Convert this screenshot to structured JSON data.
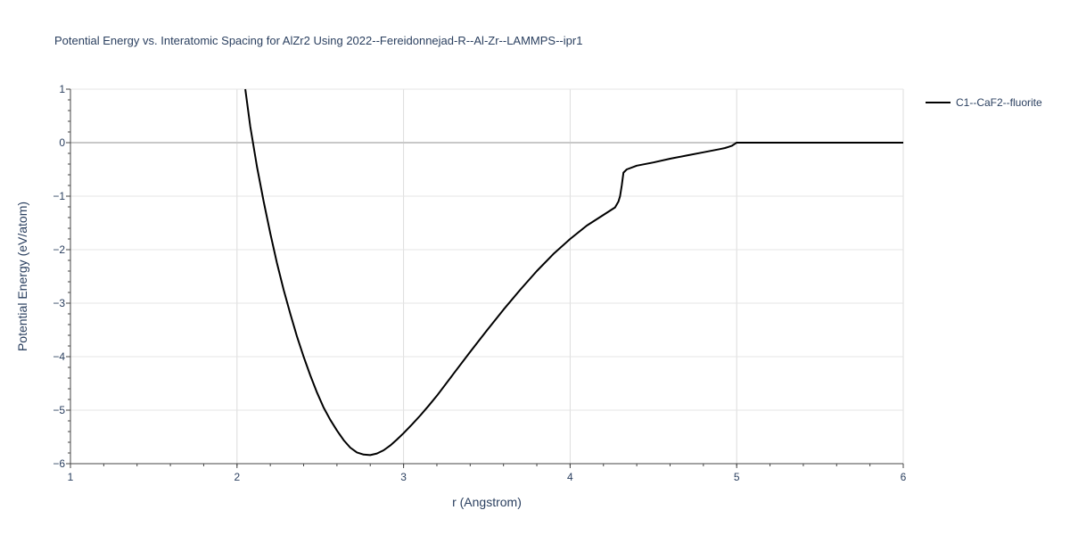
{
  "chart_data": {
    "type": "line",
    "title": "Potential Energy vs. Interatomic Spacing for AlZr2 Using 2022--Fereidonnejad-R--Al-Zr--LAMMPS--ipr1",
    "xlabel": "r (Angstrom)",
    "ylabel": "Potential Energy (eV/atom)",
    "xlim": [
      1,
      6
    ],
    "ylim": [
      -6,
      1
    ],
    "xticks": [
      "1",
      "2",
      "3",
      "4",
      "5",
      "6"
    ],
    "yticks": [
      "1",
      "0",
      "−1",
      "−2",
      "−3",
      "−4",
      "−5",
      "−6"
    ],
    "grid": true,
    "legend_position": "top-right",
    "series": [
      {
        "name": "C1--CaF2--fluorite",
        "color": "#000000",
        "x": [
          2.05,
          2.08,
          2.12,
          2.16,
          2.2,
          2.24,
          2.28,
          2.32,
          2.36,
          2.4,
          2.44,
          2.48,
          2.52,
          2.56,
          2.6,
          2.64,
          2.68,
          2.72,
          2.76,
          2.8,
          2.84,
          2.88,
          2.92,
          2.96,
          3.0,
          3.05,
          3.1,
          3.15,
          3.2,
          3.3,
          3.4,
          3.5,
          3.6,
          3.7,
          3.8,
          3.9,
          4.0,
          4.1,
          4.2,
          4.25,
          4.27,
          4.29,
          4.3,
          4.31,
          4.32,
          4.34,
          4.4,
          4.5,
          4.6,
          4.7,
          4.8,
          4.9,
          4.93,
          4.95,
          4.97,
          4.98,
          4.99,
          5.0,
          5.2,
          5.5,
          6.0
        ],
        "y": [
          1.0,
          0.3,
          -0.45,
          -1.1,
          -1.7,
          -2.25,
          -2.75,
          -3.2,
          -3.62,
          -4.0,
          -4.35,
          -4.67,
          -4.95,
          -5.18,
          -5.38,
          -5.56,
          -5.7,
          -5.79,
          -5.83,
          -5.84,
          -5.81,
          -5.75,
          -5.66,
          -5.55,
          -5.43,
          -5.27,
          -5.1,
          -4.92,
          -4.73,
          -4.32,
          -3.91,
          -3.51,
          -3.12,
          -2.75,
          -2.4,
          -2.08,
          -1.8,
          -1.55,
          -1.35,
          -1.25,
          -1.21,
          -1.1,
          -1.0,
          -0.8,
          -0.56,
          -0.5,
          -0.43,
          -0.37,
          -0.3,
          -0.24,
          -0.18,
          -0.12,
          -0.1,
          -0.08,
          -0.06,
          -0.04,
          -0.02,
          0.0,
          0.0,
          0.0,
          0.0
        ]
      }
    ]
  }
}
